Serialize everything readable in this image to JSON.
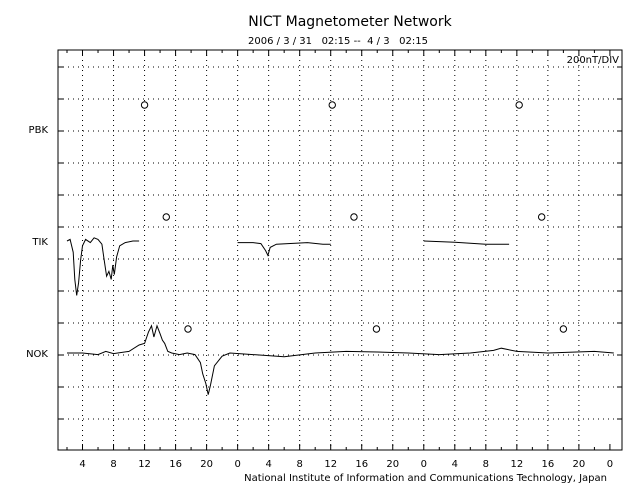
{
  "chart_data": {
    "type": "line",
    "title": "NICT Magnetometer Network",
    "subtitle": "2006 / 3 / 31   02:15 --  4 / 3   02:15",
    "scale_label": "200nT/DIV",
    "credit": "National Institute of Information and Communications Technology, Japan",
    "x_tick_labels": [
      "4",
      "8",
      "12",
      "16",
      "20",
      "0",
      "4",
      "8",
      "12",
      "16",
      "20",
      "0",
      "4",
      "8",
      "12",
      "16",
      "20",
      "0"
    ],
    "x_unit": "hours UT",
    "xlim": [
      0,
      72
    ],
    "ylim": [
      5.6,
      -3.2
    ],
    "grid": true,
    "stations": [
      {
        "name": "PBK",
        "baseline_div": 0,
        "midnight_markers_h": [
          10.0,
          34.2,
          58.3
        ]
      },
      {
        "name": "TIK",
        "baseline_div": 1,
        "midnight_markers_h": [
          12.8,
          37.0,
          61.2
        ]
      },
      {
        "name": "NOK",
        "baseline_div": 2,
        "midnight_markers_h": [
          15.6,
          39.9,
          64.0
        ]
      }
    ],
    "series": [
      {
        "name": "TIK",
        "segments": [
          [
            [
              0,
              0.0
            ],
            [
              0.4,
              -0.05
            ],
            [
              0.8,
              0.35
            ],
            [
              1.0,
              1.2
            ],
            [
              1.25,
              1.7
            ],
            [
              1.5,
              1.3
            ],
            [
              1.75,
              0.6
            ],
            [
              2.0,
              0.15
            ],
            [
              2.4,
              -0.05
            ],
            [
              3.0,
              0.05
            ],
            [
              3.5,
              -0.1
            ],
            [
              4.0,
              -0.05
            ],
            [
              4.5,
              0.1
            ],
            [
              4.8,
              0.6
            ],
            [
              5.1,
              1.1
            ],
            [
              5.4,
              0.95
            ],
            [
              5.7,
              1.2
            ],
            [
              5.9,
              0.75
            ],
            [
              6.1,
              1.05
            ],
            [
              6.4,
              0.5
            ],
            [
              6.8,
              0.15
            ],
            [
              7.5,
              0.05
            ],
            [
              8.5,
              0.0
            ],
            [
              9.3,
              0.0
            ]
          ],
          [
            [
              22.0,
              0.05
            ],
            [
              24.0,
              0.05
            ],
            [
              25.0,
              0.08
            ],
            [
              25.6,
              0.3
            ],
            [
              25.9,
              0.45
            ],
            [
              26.2,
              0.2
            ],
            [
              27.0,
              0.1
            ],
            [
              28.5,
              0.08
            ],
            [
              31.0,
              0.05
            ],
            [
              33.0,
              0.1
            ],
            [
              34.0,
              0.1
            ]
          ],
          [
            [
              46.0,
              0.0
            ],
            [
              48.0,
              0.02
            ],
            [
              50.0,
              0.04
            ],
            [
              52.0,
              0.07
            ],
            [
              54.0,
              0.1
            ],
            [
              57.0,
              0.1
            ]
          ]
        ]
      },
      {
        "name": "NOK",
        "segments": [
          [
            [
              0,
              0.0
            ],
            [
              2,
              0.0
            ],
            [
              4,
              0.05
            ],
            [
              5,
              -0.05
            ],
            [
              6,
              0.02
            ],
            [
              8,
              -0.05
            ],
            [
              9.3,
              -0.25
            ],
            [
              10.0,
              -0.3
            ],
            [
              10.5,
              -0.65
            ],
            [
              10.9,
              -0.85
            ],
            [
              11.2,
              -0.5
            ],
            [
              11.6,
              -0.85
            ],
            [
              12.0,
              -0.6
            ],
            [
              12.3,
              -0.4
            ],
            [
              12.6,
              -0.3
            ],
            [
              13.0,
              -0.05
            ],
            [
              13.5,
              0.0
            ],
            [
              14.5,
              0.05
            ],
            [
              15.5,
              0.0
            ],
            [
              16.5,
              0.05
            ],
            [
              17.2,
              0.3
            ],
            [
              17.5,
              0.65
            ],
            [
              17.9,
              0.95
            ],
            [
              18.2,
              1.3
            ],
            [
              18.5,
              1.0
            ],
            [
              19,
              0.4
            ],
            [
              20,
              0.1
            ],
            [
              21,
              0.0
            ],
            [
              24,
              0.05
            ],
            [
              28,
              0.12
            ],
            [
              32,
              0.0
            ],
            [
              36,
              -0.05
            ],
            [
              40,
              -0.03
            ],
            [
              44,
              0.0
            ],
            [
              48,
              0.05
            ],
            [
              52,
              0.0
            ],
            [
              55,
              -0.08
            ],
            [
              56,
              -0.15
            ],
            [
              58,
              -0.05
            ],
            [
              62,
              0.0
            ],
            [
              68,
              -0.05
            ],
            [
              70.5,
              0.0
            ]
          ]
        ]
      }
    ]
  }
}
